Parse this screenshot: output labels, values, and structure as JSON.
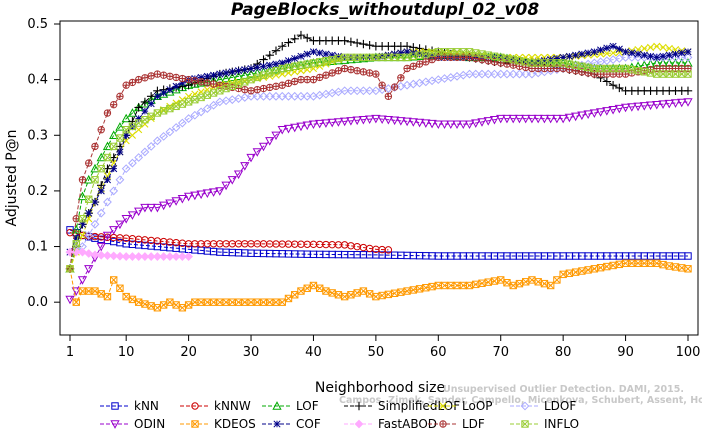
{
  "chart_data": {
    "type": "line",
    "title": "PageBlocks_withoutdupl_02_v08",
    "xlabel": "Neighborhood size",
    "ylabel": "Adjusted P@n",
    "xlim": [
      1,
      100
    ],
    "ylim": [
      -0.05,
      0.5
    ],
    "xticks": [
      1,
      10,
      20,
      30,
      40,
      50,
      60,
      70,
      80,
      90,
      100
    ],
    "yticks": [
      0.0,
      0.1,
      0.2,
      0.3,
      0.4,
      0.5
    ],
    "ytick_labels": [
      "0.0",
      "0.1",
      "0.2",
      "0.3",
      "0.4",
      "0.5"
    ],
    "grid": false,
    "legend_position": "bottom",
    "watermark_lines": [
      "Unsupervised Outlier Detection. DAMI, 2015.",
      "Campos, Zimek, Sander, Campello, Micenkova, Schubert, Assent, Houle"
    ],
    "series": [
      {
        "name": "kNN",
        "color": "#0000cc",
        "marker": "square",
        "points": [
          [
            1,
            0.13
          ],
          [
            3,
            0.12
          ],
          [
            5,
            0.115
          ],
          [
            10,
            0.105
          ],
          [
            15,
            0.1
          ],
          [
            20,
            0.095
          ],
          [
            25,
            0.09
          ],
          [
            30,
            0.088
          ],
          [
            40,
            0.086
          ],
          [
            50,
            0.085
          ],
          [
            60,
            0.083
          ],
          [
            70,
            0.083
          ],
          [
            80,
            0.083
          ],
          [
            90,
            0.083
          ],
          [
            100,
            0.083
          ]
        ]
      },
      {
        "name": "kNNW",
        "color": "#cc0000",
        "marker": "circle",
        "points": [
          [
            1,
            0.125
          ],
          [
            3,
            0.12
          ],
          [
            5,
            0.118
          ],
          [
            10,
            0.115
          ],
          [
            15,
            0.11
          ],
          [
            20,
            0.105
          ],
          [
            30,
            0.105
          ],
          [
            40,
            0.104
          ],
          [
            45,
            0.103
          ],
          [
            50,
            0.095
          ],
          [
            52,
            0.094
          ]
        ]
      },
      {
        "name": "LOF",
        "color": "#00aa00",
        "marker": "triangle-up",
        "points": [
          [
            1,
            0.06
          ],
          [
            2,
            0.13
          ],
          [
            3,
            0.19
          ],
          [
            4,
            0.22
          ],
          [
            6,
            0.26
          ],
          [
            8,
            0.3
          ],
          [
            10,
            0.33
          ],
          [
            12,
            0.35
          ],
          [
            15,
            0.37
          ],
          [
            20,
            0.39
          ],
          [
            25,
            0.4
          ],
          [
            30,
            0.41
          ],
          [
            35,
            0.42
          ],
          [
            40,
            0.43
          ],
          [
            45,
            0.435
          ],
          [
            50,
            0.44
          ],
          [
            55,
            0.44
          ],
          [
            60,
            0.445
          ],
          [
            65,
            0.44
          ],
          [
            70,
            0.44
          ],
          [
            75,
            0.43
          ],
          [
            80,
            0.43
          ],
          [
            85,
            0.42
          ],
          [
            90,
            0.42
          ],
          [
            95,
            0.43
          ],
          [
            100,
            0.43
          ]
        ]
      },
      {
        "name": "SimplifiedLOF",
        "color": "#000000",
        "marker": "plus",
        "points": [
          [
            1,
            0.06
          ],
          [
            2,
            0.1
          ],
          [
            3,
            0.14
          ],
          [
            5,
            0.18
          ],
          [
            7,
            0.24
          ],
          [
            10,
            0.3
          ],
          [
            12,
            0.35
          ],
          [
            15,
            0.38
          ],
          [
            20,
            0.39
          ],
          [
            25,
            0.41
          ],
          [
            30,
            0.42
          ],
          [
            35,
            0.46
          ],
          [
            38,
            0.48
          ],
          [
            40,
            0.47
          ],
          [
            45,
            0.47
          ],
          [
            50,
            0.46
          ],
          [
            55,
            0.46
          ],
          [
            60,
            0.45
          ],
          [
            65,
            0.44
          ],
          [
            70,
            0.43
          ],
          [
            75,
            0.43
          ],
          [
            80,
            0.42
          ],
          [
            85,
            0.41
          ],
          [
            88,
            0.39
          ],
          [
            90,
            0.38
          ],
          [
            95,
            0.38
          ],
          [
            100,
            0.38
          ]
        ]
      },
      {
        "name": "LoOP",
        "color": "#dddd00",
        "marker": "x",
        "points": [
          [
            1,
            0.06
          ],
          [
            3,
            0.12
          ],
          [
            5,
            0.18
          ],
          [
            8,
            0.25
          ],
          [
            10,
            0.29
          ],
          [
            15,
            0.34
          ],
          [
            20,
            0.37
          ],
          [
            25,
            0.39
          ],
          [
            30,
            0.4
          ],
          [
            40,
            0.42
          ],
          [
            45,
            0.44
          ],
          [
            50,
            0.44
          ],
          [
            55,
            0.45
          ],
          [
            60,
            0.45
          ],
          [
            70,
            0.44
          ],
          [
            80,
            0.44
          ],
          [
            90,
            0.45
          ],
          [
            95,
            0.46
          ],
          [
            100,
            0.45
          ]
        ]
      },
      {
        "name": "LDOF",
        "color": "#aaaaff",
        "marker": "diamond",
        "points": [
          [
            1,
            0.09
          ],
          [
            3,
            0.1
          ],
          [
            5,
            0.14
          ],
          [
            8,
            0.2
          ],
          [
            10,
            0.24
          ],
          [
            15,
            0.29
          ],
          [
            20,
            0.33
          ],
          [
            25,
            0.36
          ],
          [
            30,
            0.37
          ],
          [
            35,
            0.37
          ],
          [
            40,
            0.37
          ],
          [
            45,
            0.38
          ],
          [
            50,
            0.38
          ],
          [
            55,
            0.39
          ],
          [
            60,
            0.4
          ],
          [
            65,
            0.41
          ],
          [
            70,
            0.41
          ],
          [
            75,
            0.41
          ],
          [
            80,
            0.42
          ],
          [
            85,
            0.43
          ],
          [
            90,
            0.44
          ],
          [
            95,
            0.44
          ],
          [
            100,
            0.44
          ]
        ]
      },
      {
        "name": "ODIN",
        "color": "#9900cc",
        "marker": "triangle-down",
        "points": [
          [
            1,
            0.005
          ],
          [
            2,
            0.02
          ],
          [
            3,
            0.04
          ],
          [
            5,
            0.08
          ],
          [
            7,
            0.12
          ],
          [
            10,
            0.15
          ],
          [
            13,
            0.17
          ],
          [
            15,
            0.17
          ],
          [
            20,
            0.19
          ],
          [
            25,
            0.2
          ],
          [
            28,
            0.23
          ],
          [
            30,
            0.26
          ],
          [
            33,
            0.29
          ],
          [
            35,
            0.31
          ],
          [
            40,
            0.32
          ],
          [
            45,
            0.325
          ],
          [
            50,
            0.33
          ],
          [
            55,
            0.325
          ],
          [
            60,
            0.32
          ],
          [
            65,
            0.32
          ],
          [
            70,
            0.33
          ],
          [
            75,
            0.33
          ],
          [
            80,
            0.33
          ],
          [
            85,
            0.34
          ],
          [
            90,
            0.35
          ],
          [
            95,
            0.355
          ],
          [
            100,
            0.36
          ]
        ]
      },
      {
        "name": "KDEOS",
        "color": "#ff9900",
        "marker": "square-x",
        "points": [
          [
            1,
            0.06
          ],
          [
            2,
            0.0
          ],
          [
            3,
            0.02
          ],
          [
            5,
            0.02
          ],
          [
            7,
            0.01
          ],
          [
            8,
            0.04
          ],
          [
            10,
            0.01
          ],
          [
            12,
            0.0
          ],
          [
            15,
            -0.01
          ],
          [
            17,
            0.0
          ],
          [
            19,
            -0.01
          ],
          [
            21,
            0.0
          ],
          [
            25,
            0.0
          ],
          [
            30,
            0.0
          ],
          [
            35,
            0.0
          ],
          [
            38,
            0.02
          ],
          [
            40,
            0.03
          ],
          [
            42,
            0.02
          ],
          [
            45,
            0.01
          ],
          [
            48,
            0.02
          ],
          [
            50,
            0.01
          ],
          [
            55,
            0.02
          ],
          [
            60,
            0.03
          ],
          [
            65,
            0.03
          ],
          [
            70,
            0.04
          ],
          [
            72,
            0.03
          ],
          [
            75,
            0.04
          ],
          [
            78,
            0.03
          ],
          [
            80,
            0.05
          ],
          [
            85,
            0.06
          ],
          [
            90,
            0.07
          ],
          [
            95,
            0.07
          ],
          [
            97,
            0.065
          ],
          [
            100,
            0.06
          ]
        ]
      },
      {
        "name": "COF",
        "color": "#000088",
        "marker": "asterisk",
        "points": [
          [
            1,
            0.09
          ],
          [
            3,
            0.14
          ],
          [
            5,
            0.18
          ],
          [
            8,
            0.24
          ],
          [
            10,
            0.3
          ],
          [
            12,
            0.33
          ],
          [
            15,
            0.37
          ],
          [
            20,
            0.4
          ],
          [
            25,
            0.41
          ],
          [
            30,
            0.42
          ],
          [
            35,
            0.43
          ],
          [
            40,
            0.45
          ],
          [
            45,
            0.44
          ],
          [
            50,
            0.44
          ],
          [
            55,
            0.45
          ],
          [
            60,
            0.44
          ],
          [
            65,
            0.44
          ],
          [
            70,
            0.44
          ],
          [
            75,
            0.43
          ],
          [
            80,
            0.44
          ],
          [
            85,
            0.45
          ],
          [
            88,
            0.46
          ],
          [
            90,
            0.45
          ],
          [
            95,
            0.44
          ],
          [
            100,
            0.45
          ]
        ]
      },
      {
        "name": "FastABOD",
        "color": "#ffaaff",
        "marker": "diamond-filled",
        "points": [
          [
            1,
            0.09
          ],
          [
            3,
            0.09
          ],
          [
            5,
            0.085
          ],
          [
            10,
            0.082
          ],
          [
            15,
            0.082
          ],
          [
            20,
            0.082
          ]
        ]
      },
      {
        "name": "LDF",
        "color": "#aa3333",
        "marker": "circle-plus",
        "points": [
          [
            1,
            0.06
          ],
          [
            2,
            0.15
          ],
          [
            3,
            0.22
          ],
          [
            5,
            0.28
          ],
          [
            7,
            0.34
          ],
          [
            9,
            0.37
          ],
          [
            10,
            0.39
          ],
          [
            12,
            0.4
          ],
          [
            15,
            0.41
          ],
          [
            20,
            0.4
          ],
          [
            25,
            0.39
          ],
          [
            30,
            0.38
          ],
          [
            35,
            0.39
          ],
          [
            38,
            0.4
          ],
          [
            40,
            0.4
          ],
          [
            45,
            0.42
          ],
          [
            50,
            0.41
          ],
          [
            52,
            0.37
          ],
          [
            55,
            0.42
          ],
          [
            60,
            0.44
          ],
          [
            65,
            0.44
          ],
          [
            70,
            0.43
          ],
          [
            75,
            0.42
          ],
          [
            80,
            0.42
          ],
          [
            85,
            0.41
          ],
          [
            90,
            0.41
          ],
          [
            95,
            0.42
          ],
          [
            100,
            0.42
          ]
        ]
      },
      {
        "name": "INFLO",
        "color": "#99cc33",
        "marker": "square-x",
        "points": [
          [
            1,
            0.06
          ],
          [
            3,
            0.15
          ],
          [
            5,
            0.22
          ],
          [
            8,
            0.28
          ],
          [
            10,
            0.31
          ],
          [
            15,
            0.34
          ],
          [
            20,
            0.36
          ],
          [
            25,
            0.38
          ],
          [
            30,
            0.4
          ],
          [
            35,
            0.42
          ],
          [
            40,
            0.43
          ],
          [
            45,
            0.44
          ],
          [
            50,
            0.44
          ],
          [
            55,
            0.44
          ],
          [
            60,
            0.45
          ],
          [
            65,
            0.45
          ],
          [
            70,
            0.44
          ],
          [
            75,
            0.43
          ],
          [
            80,
            0.43
          ],
          [
            85,
            0.42
          ],
          [
            90,
            0.42
          ],
          [
            95,
            0.41
          ],
          [
            100,
            0.41
          ]
        ]
      }
    ]
  }
}
